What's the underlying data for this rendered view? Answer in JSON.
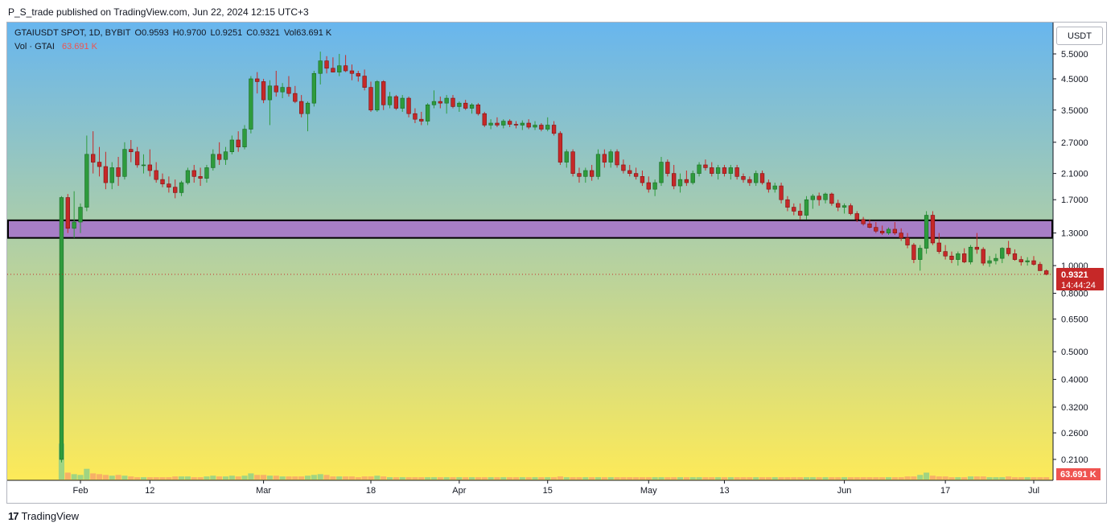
{
  "header": {
    "published": "P_S_trade published on TradingView.com, Jun 22, 2024 12:15 UTC+3"
  },
  "legend": {
    "symbol": "GTAIUSDT SPOT, 1D, BYBIT",
    "open": "O0.9593",
    "high": "H0.9700",
    "low": "L0.9251",
    "close": "C0.9321",
    "vol": "Vol63.691 K",
    "vol_label": "Vol · GTAI",
    "vol_value": "63.691 K"
  },
  "currency_button": "USDT",
  "footer": {
    "brand": "TradingView",
    "logo": "17"
  },
  "colors": {
    "up": "#2e9b3c",
    "down": "#c62828",
    "zone": "#a77ec6",
    "gradient_top": "#68b6ee",
    "gradient_bottom": "#fdea58"
  },
  "chart_data": {
    "type": "candlestick",
    "symbol": "GTAIUSDT",
    "interval": "1D",
    "scale": "log",
    "yticks": [
      "5.5000",
      "4.5000",
      "3.5000",
      "2.7000",
      "2.1000",
      "1.7000",
      "1.3000",
      "1.0000",
      "0.8000",
      "0.6500",
      "0.5000",
      "0.4000",
      "0.3200",
      "0.2600",
      "0.2100"
    ],
    "xticks": [
      "Feb",
      "12",
      "Mar",
      "18",
      "Apr",
      "15",
      "May",
      "13",
      "Jun",
      "17",
      "Jul"
    ],
    "last_price": "0.9321",
    "countdown": "14:44:24",
    "last_volume": "63.691 K",
    "zone": {
      "low": 1.25,
      "high": 1.44
    },
    "first_date": "2024-01-29",
    "candles": [
      [
        0.21,
        1.75,
        0.205,
        1.73,
        4.7
      ],
      [
        1.73,
        1.78,
        1.3,
        1.35,
        0.9
      ],
      [
        1.35,
        1.82,
        1.25,
        1.42,
        0.7
      ],
      [
        1.42,
        1.65,
        1.3,
        1.6,
        0.6
      ],
      [
        1.6,
        2.85,
        1.55,
        2.45,
        1.4
      ],
      [
        2.45,
        2.95,
        2.1,
        2.3,
        0.8
      ],
      [
        2.3,
        2.6,
        2.05,
        2.22,
        0.7
      ],
      [
        2.22,
        2.5,
        1.85,
        1.95,
        0.6
      ],
      [
        1.95,
        2.3,
        1.85,
        2.2,
        0.5
      ],
      [
        2.2,
        2.4,
        1.9,
        2.05,
        0.6
      ],
      [
        2.05,
        2.7,
        2.0,
        2.55,
        0.5
      ],
      [
        2.55,
        2.75,
        2.3,
        2.5,
        0.4
      ],
      [
        2.5,
        2.6,
        2.2,
        2.25,
        0.3
      ],
      [
        2.25,
        2.45,
        2.1,
        2.25,
        0.3
      ],
      [
        2.25,
        2.55,
        2.05,
        2.15,
        0.3
      ],
      [
        2.15,
        2.3,
        1.95,
        2.0,
        0.3
      ],
      [
        2.0,
        2.1,
        1.88,
        1.93,
        0.3
      ],
      [
        1.93,
        2.05,
        1.8,
        1.88,
        0.3
      ],
      [
        1.88,
        2.0,
        1.72,
        1.8,
        0.4
      ],
      [
        1.8,
        1.98,
        1.75,
        1.95,
        0.4
      ],
      [
        1.95,
        2.2,
        1.92,
        2.15,
        0.4
      ],
      [
        2.15,
        2.25,
        1.95,
        2.05,
        0.3
      ],
      [
        2.05,
        2.2,
        1.9,
        2.02,
        0.3
      ],
      [
        2.02,
        2.25,
        1.95,
        2.2,
        0.4
      ],
      [
        2.2,
        2.55,
        2.15,
        2.45,
        0.5
      ],
      [
        2.45,
        2.7,
        2.25,
        2.35,
        0.4
      ],
      [
        2.35,
        2.6,
        2.25,
        2.5,
        0.4
      ],
      [
        2.5,
        2.85,
        2.45,
        2.75,
        0.5
      ],
      [
        2.75,
        2.95,
        2.5,
        2.6,
        0.4
      ],
      [
        2.6,
        3.1,
        2.55,
        3.0,
        0.5
      ],
      [
        3.0,
        4.6,
        2.9,
        4.5,
        0.8
      ],
      [
        4.5,
        4.75,
        4.0,
        4.4,
        0.6
      ],
      [
        4.4,
        4.5,
        3.7,
        3.8,
        0.6
      ],
      [
        3.8,
        4.45,
        3.1,
        4.25,
        0.5
      ],
      [
        4.25,
        4.8,
        3.9,
        4.05,
        0.5
      ],
      [
        4.05,
        4.35,
        3.85,
        4.2,
        0.4
      ],
      [
        4.2,
        4.6,
        3.9,
        4.0,
        0.4
      ],
      [
        4.0,
        4.25,
        3.7,
        3.75,
        0.4
      ],
      [
        3.75,
        3.95,
        3.3,
        3.4,
        0.4
      ],
      [
        3.4,
        3.75,
        2.95,
        3.7,
        0.5
      ],
      [
        3.7,
        4.8,
        3.6,
        4.7,
        0.6
      ],
      [
        4.7,
        5.6,
        4.3,
        5.2,
        0.7
      ],
      [
        5.2,
        5.4,
        4.7,
        4.9,
        0.6
      ],
      [
        4.9,
        5.35,
        4.75,
        4.75,
        0.4
      ],
      [
        4.75,
        5.5,
        4.6,
        5.0,
        0.4
      ],
      [
        5.0,
        5.45,
        4.75,
        4.8,
        0.4
      ],
      [
        4.8,
        5.05,
        4.45,
        4.7,
        0.4
      ],
      [
        4.7,
        4.8,
        4.4,
        4.6,
        0.3
      ],
      [
        4.6,
        4.85,
        4.1,
        4.2,
        0.4
      ],
      [
        4.2,
        4.4,
        3.45,
        3.5,
        0.4
      ],
      [
        3.5,
        4.45,
        3.45,
        4.4,
        0.5
      ],
      [
        4.4,
        4.45,
        3.5,
        3.65,
        0.4
      ],
      [
        3.65,
        4.05,
        3.55,
        3.9,
        0.3
      ],
      [
        3.9,
        3.95,
        3.5,
        3.55,
        0.3
      ],
      [
        3.55,
        3.95,
        3.45,
        3.85,
        0.3
      ],
      [
        3.85,
        3.9,
        3.3,
        3.4,
        0.3
      ],
      [
        3.4,
        3.55,
        3.15,
        3.25,
        0.3
      ],
      [
        3.25,
        3.45,
        3.1,
        3.2,
        0.3
      ],
      [
        3.2,
        3.7,
        3.1,
        3.65,
        0.3
      ],
      [
        3.65,
        4.1,
        3.55,
        3.75,
        0.3
      ],
      [
        3.75,
        3.9,
        3.55,
        3.7,
        0.3
      ],
      [
        3.7,
        3.95,
        3.4,
        3.85,
        0.3
      ],
      [
        3.85,
        3.95,
        3.55,
        3.6,
        0.3
      ],
      [
        3.6,
        3.75,
        3.45,
        3.7,
        0.3
      ],
      [
        3.7,
        3.8,
        3.5,
        3.55,
        0.3
      ],
      [
        3.55,
        3.7,
        3.4,
        3.65,
        0.3
      ],
      [
        3.65,
        3.7,
        3.35,
        3.4,
        0.3
      ],
      [
        3.4,
        3.45,
        3.05,
        3.1,
        0.3
      ],
      [
        3.1,
        3.25,
        3.0,
        3.15,
        0.3
      ],
      [
        3.15,
        3.3,
        3.05,
        3.1,
        0.3
      ],
      [
        3.1,
        3.25,
        3.02,
        3.2,
        0.3
      ],
      [
        3.2,
        3.25,
        3.05,
        3.12,
        0.3
      ],
      [
        3.12,
        3.2,
        3.02,
        3.1,
        0.3
      ],
      [
        3.1,
        3.22,
        2.98,
        3.15,
        0.3
      ],
      [
        3.15,
        3.25,
        3.0,
        3.05,
        0.3
      ],
      [
        3.05,
        3.2,
        2.98,
        3.1,
        0.3
      ],
      [
        3.1,
        3.15,
        2.95,
        3.0,
        0.3
      ],
      [
        3.0,
        3.3,
        2.95,
        3.1,
        0.3
      ],
      [
        3.1,
        3.2,
        2.85,
        2.9,
        0.3
      ],
      [
        2.9,
        2.95,
        2.25,
        2.3,
        0.4
      ],
      [
        2.3,
        2.55,
        2.2,
        2.5,
        0.3
      ],
      [
        2.5,
        2.55,
        2.05,
        2.1,
        0.3
      ],
      [
        2.1,
        2.2,
        1.95,
        2.05,
        0.3
      ],
      [
        2.05,
        2.2,
        1.95,
        2.15,
        0.3
      ],
      [
        2.15,
        2.25,
        1.98,
        2.05,
        0.3
      ],
      [
        2.05,
        2.55,
        2.0,
        2.45,
        0.3
      ],
      [
        2.45,
        2.55,
        2.2,
        2.3,
        0.3
      ],
      [
        2.3,
        2.55,
        2.2,
        2.5,
        0.3
      ],
      [
        2.5,
        2.55,
        2.2,
        2.25,
        0.3
      ],
      [
        2.25,
        2.35,
        2.1,
        2.15,
        0.3
      ],
      [
        2.15,
        2.25,
        2.05,
        2.1,
        0.3
      ],
      [
        2.1,
        2.2,
        2.0,
        2.05,
        0.3
      ],
      [
        2.05,
        2.15,
        1.9,
        1.95,
        0.3
      ],
      [
        1.95,
        2.05,
        1.8,
        1.85,
        0.3
      ],
      [
        1.85,
        2.0,
        1.75,
        1.95,
        0.3
      ],
      [
        1.95,
        2.4,
        1.9,
        2.3,
        0.3
      ],
      [
        2.3,
        2.35,
        2.05,
        2.1,
        0.3
      ],
      [
        2.1,
        2.25,
        1.85,
        1.9,
        0.3
      ],
      [
        1.9,
        2.1,
        1.8,
        2.0,
        0.3
      ],
      [
        2.0,
        2.15,
        1.9,
        1.95,
        0.3
      ],
      [
        1.95,
        2.15,
        1.92,
        2.1,
        0.3
      ],
      [
        2.1,
        2.3,
        2.05,
        2.25,
        0.3
      ],
      [
        2.25,
        2.35,
        2.15,
        2.2,
        0.3
      ],
      [
        2.2,
        2.3,
        2.05,
        2.1,
        0.3
      ],
      [
        2.1,
        2.25,
        2.0,
        2.2,
        0.3
      ],
      [
        2.2,
        2.25,
        2.05,
        2.1,
        0.3
      ],
      [
        2.1,
        2.25,
        2.0,
        2.2,
        0.3
      ],
      [
        2.2,
        2.25,
        2.0,
        2.05,
        0.3
      ],
      [
        2.05,
        2.1,
        1.95,
        2.0,
        0.3
      ],
      [
        2.0,
        2.05,
        1.9,
        1.95,
        0.3
      ],
      [
        1.95,
        2.15,
        1.9,
        2.1,
        0.3
      ],
      [
        2.1,
        2.15,
        1.92,
        1.95,
        0.3
      ],
      [
        1.95,
        2.0,
        1.8,
        1.85,
        0.3
      ],
      [
        1.85,
        1.95,
        1.8,
        1.9,
        0.3
      ],
      [
        1.9,
        1.95,
        1.65,
        1.7,
        0.3
      ],
      [
        1.7,
        1.75,
        1.55,
        1.6,
        0.3
      ],
      [
        1.6,
        1.65,
        1.5,
        1.55,
        0.3
      ],
      [
        1.55,
        1.65,
        1.45,
        1.5,
        0.3
      ],
      [
        1.5,
        1.75,
        1.45,
        1.7,
        0.3
      ],
      [
        1.7,
        1.78,
        1.58,
        1.75,
        0.3
      ],
      [
        1.75,
        1.8,
        1.62,
        1.7,
        0.3
      ],
      [
        1.7,
        1.8,
        1.65,
        1.78,
        0.3
      ],
      [
        1.78,
        1.8,
        1.62,
        1.65,
        0.3
      ],
      [
        1.65,
        1.7,
        1.55,
        1.6,
        0.3
      ],
      [
        1.6,
        1.65,
        1.52,
        1.62,
        0.3
      ],
      [
        1.62,
        1.65,
        1.5,
        1.52,
        0.3
      ],
      [
        1.52,
        1.55,
        1.42,
        1.45,
        0.3
      ],
      [
        1.45,
        1.48,
        1.38,
        1.4,
        0.3
      ],
      [
        1.4,
        1.45,
        1.35,
        1.36,
        0.3
      ],
      [
        1.36,
        1.42,
        1.3,
        1.32,
        0.3
      ],
      [
        1.32,
        1.38,
        1.28,
        1.3,
        0.3
      ],
      [
        1.3,
        1.36,
        1.28,
        1.34,
        0.3
      ],
      [
        1.34,
        1.42,
        1.28,
        1.3,
        0.3
      ],
      [
        1.3,
        1.35,
        1.22,
        1.25,
        0.3
      ],
      [
        1.25,
        1.3,
        1.15,
        1.18,
        0.4
      ],
      [
        1.18,
        1.2,
        1.02,
        1.05,
        0.4
      ],
      [
        1.05,
        1.18,
        0.96,
        1.15,
        0.6
      ],
      [
        1.15,
        1.55,
        1.1,
        1.5,
        0.9
      ],
      [
        1.5,
        1.55,
        1.18,
        1.2,
        0.5
      ],
      [
        1.2,
        1.3,
        1.1,
        1.12,
        0.4
      ],
      [
        1.12,
        1.18,
        1.05,
        1.08,
        0.4
      ],
      [
        1.08,
        1.12,
        1.02,
        1.05,
        0.3
      ],
      [
        1.05,
        1.12,
        1.0,
        1.1,
        0.3
      ],
      [
        1.1,
        1.15,
        1.02,
        1.03,
        0.3
      ],
      [
        1.03,
        1.18,
        1.01,
        1.16,
        0.4
      ],
      [
        1.16,
        1.3,
        1.1,
        1.14,
        0.4
      ],
      [
        1.14,
        1.16,
        1.0,
        1.02,
        0.4
      ],
      [
        1.02,
        1.08,
        0.99,
        1.04,
        0.3
      ],
      [
        1.04,
        1.1,
        1.01,
        1.06,
        0.3
      ],
      [
        1.06,
        1.16,
        1.02,
        1.15,
        0.3
      ],
      [
        1.15,
        1.22,
        1.08,
        1.1,
        0.4
      ],
      [
        1.1,
        1.14,
        1.04,
        1.05,
        0.3
      ],
      [
        1.05,
        1.08,
        1.0,
        1.03,
        0.3
      ],
      [
        1.03,
        1.07,
        1.0,
        1.04,
        0.3
      ],
      [
        1.04,
        1.08,
        1.0,
        1.01,
        0.3
      ],
      [
        1.01,
        1.03,
        0.96,
        0.96,
        0.3
      ],
      [
        0.9593,
        0.97,
        0.9251,
        0.9321,
        0.3
      ]
    ]
  }
}
